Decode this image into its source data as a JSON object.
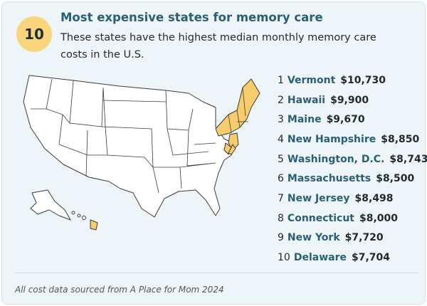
{
  "badge": "10",
  "header": {
    "title": "Most expensive states for memory care",
    "subtitle": "These states have the highest median monthly memory care costs in the U.S."
  },
  "list": [
    {
      "rank": "1",
      "state": "Vermont",
      "cost": "$10,730"
    },
    {
      "rank": "2",
      "state": "Hawaii",
      "cost": "$9,900"
    },
    {
      "rank": "3",
      "state": "Maine",
      "cost": "$9,670"
    },
    {
      "rank": "4",
      "state": "New Hampshire",
      "cost": "$8,850"
    },
    {
      "rank": "5",
      "state": "Washington, D.C.",
      "cost": "$8,743"
    },
    {
      "rank": "6",
      "state": "Massachusetts",
      "cost": "$8,500"
    },
    {
      "rank": "7",
      "state": "New Jersey",
      "cost": "$8,498"
    },
    {
      "rank": "8",
      "state": "Connecticut",
      "cost": "$8,000"
    },
    {
      "rank": "9",
      "state": "New York",
      "cost": "$7,720"
    },
    {
      "rank": "10",
      "state": "Delaware",
      "cost": "$7,704"
    }
  ],
  "footer": "All cost data sourced from A Place for Mom 2024"
}
